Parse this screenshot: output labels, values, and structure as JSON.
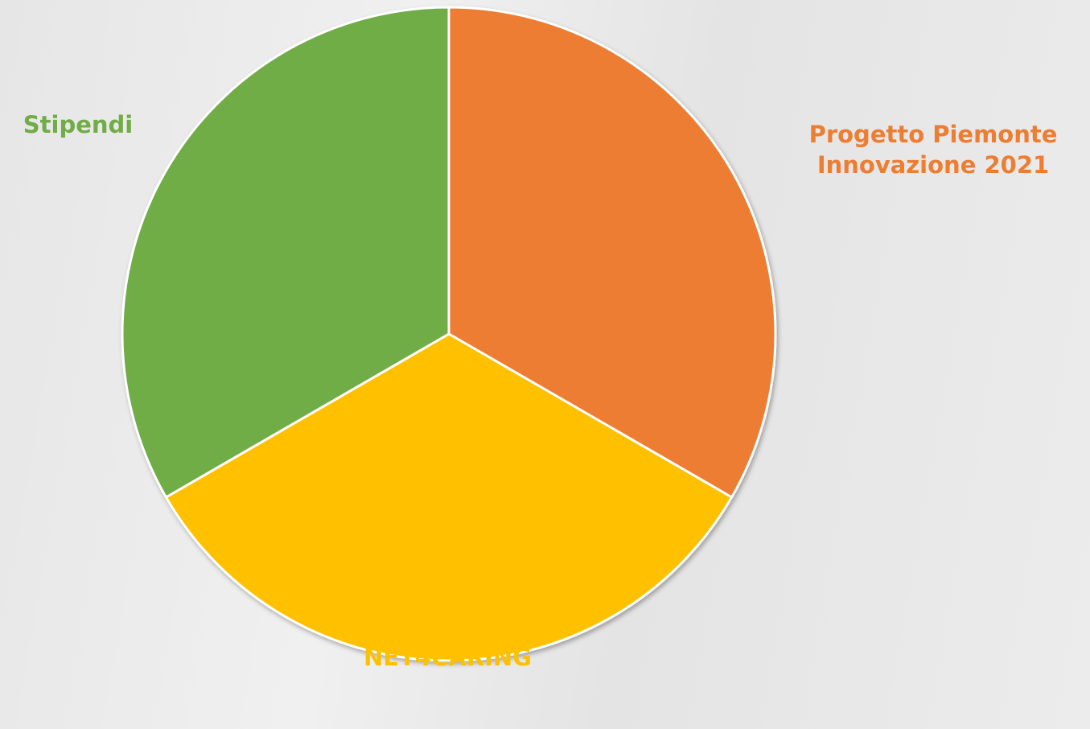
{
  "chart_data": {
    "type": "pie",
    "categories": [
      "Progetto Piemonte Innovazione 2021",
      "Progetto NET4CARING",
      "Stipendi"
    ],
    "values": [
      33.3,
      33.3,
      33.3
    ],
    "colors": [
      "#ed7d31",
      "#ffc000",
      "#70ad47"
    ]
  }
}
